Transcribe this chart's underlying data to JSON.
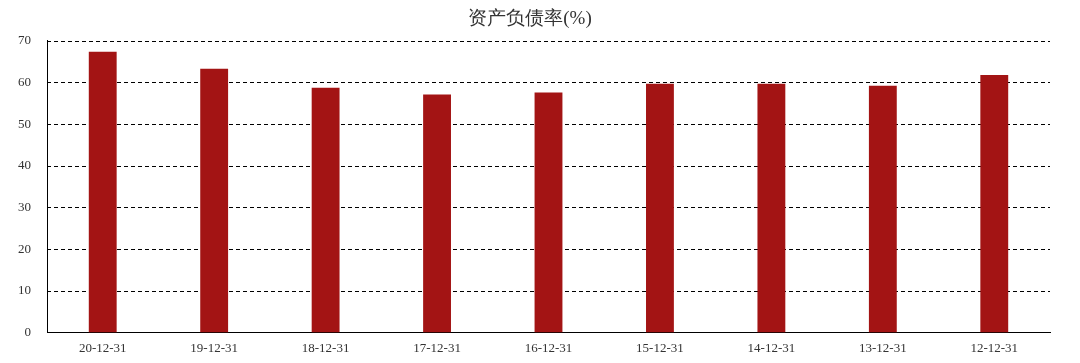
{
  "chart_data": {
    "type": "bar",
    "title": "资产负债率(%)",
    "categories": [
      "20-12-31",
      "19-12-31",
      "18-12-31",
      "17-12-31",
      "16-12-31",
      "15-12-31",
      "14-12-31",
      "13-12-31",
      "12-12-31"
    ],
    "values": [
      67.4,
      63.3,
      58.7,
      57.1,
      57.6,
      59.7,
      59.7,
      59.2,
      61.8
    ],
    "color": "#a31414",
    "ylim": [
      0,
      70
    ],
    "yticks": [
      0,
      10,
      20,
      30,
      40,
      50,
      60,
      70
    ],
    "grid": "y",
    "legend": false
  }
}
